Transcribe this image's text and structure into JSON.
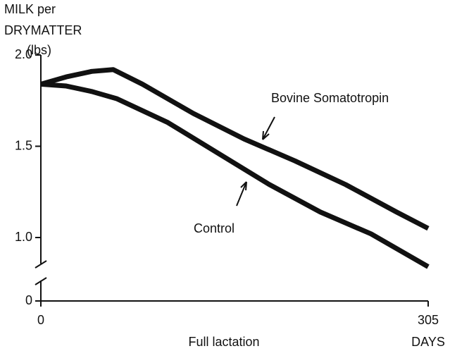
{
  "chart_data": {
    "type": "line",
    "ylabel": [
      "MILK per",
      "DRYMATTER",
      "(lbs)"
    ],
    "xlabel": "Full lactation",
    "xunit": "DAYS",
    "xlim": [
      0,
      305
    ],
    "xticks": [
      0,
      305
    ],
    "ylim": [
      0,
      2
    ],
    "yticks": [
      0,
      {
        "value": 1,
        "label": "1.0"
      },
      {
        "value": 1.5,
        "label": "1.5"
      },
      {
        "value": 2,
        "label": "2.0"
      }
    ],
    "y_broken": true,
    "series": [
      {
        "name": "Bovine Somatotropin",
        "color": "#111111",
        "x": [
          0,
          20,
          40,
          57,
          80,
          120,
          160,
          200,
          240,
          280,
          305
        ],
        "values": [
          1.84,
          1.88,
          1.91,
          1.92,
          1.84,
          1.68,
          1.54,
          1.42,
          1.29,
          1.14,
          1.05
        ]
      },
      {
        "name": "Control",
        "color": "#111111",
        "x": [
          0,
          20,
          40,
          60,
          100,
          140,
          180,
          220,
          260,
          305
        ],
        "values": [
          1.84,
          1.83,
          1.8,
          1.76,
          1.63,
          1.46,
          1.29,
          1.14,
          1.02,
          0.84
        ]
      }
    ]
  }
}
